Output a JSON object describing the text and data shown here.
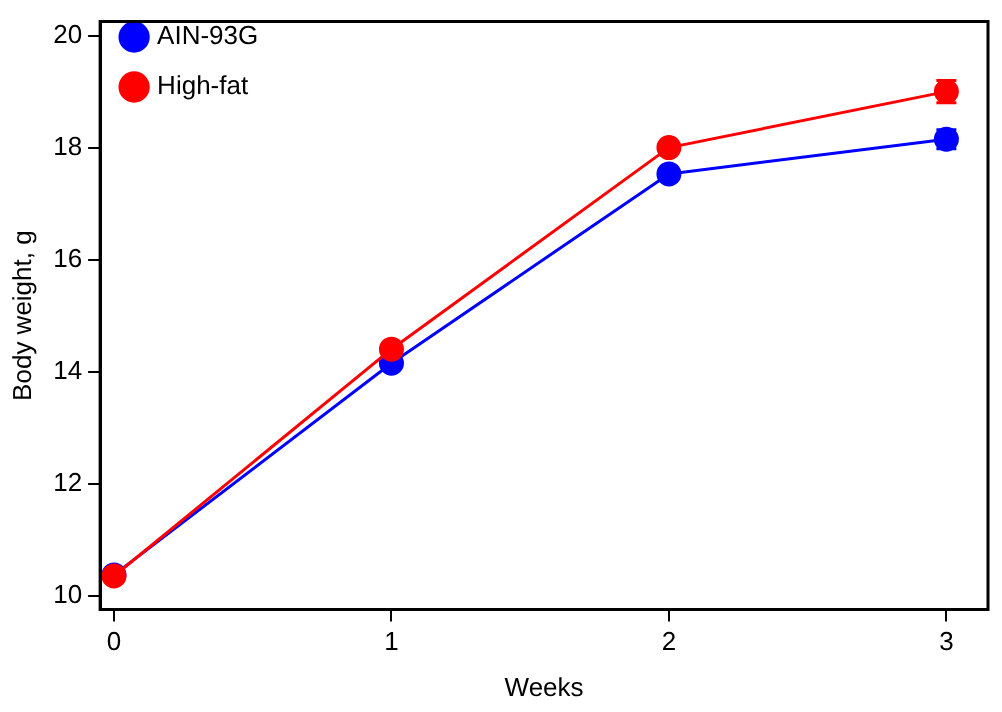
{
  "chart_data": {
    "type": "line",
    "xlabel": "Weeks",
    "ylabel": "Body weight, g",
    "x": [
      0,
      1,
      2,
      3
    ],
    "series": [
      {
        "name": "AIN-93G",
        "color": "#0000ff",
        "values": [
          10.37,
          14.15,
          17.53,
          18.15
        ],
        "errors": [
          null,
          null,
          null,
          0.17
        ]
      },
      {
        "name": "High-fat",
        "color": "#ff0000",
        "values": [
          10.35,
          14.4,
          18.0,
          19.0
        ],
        "errors": [
          null,
          null,
          null,
          0.2
        ]
      }
    ],
    "xlim": [
      -0.05,
      3.15
    ],
    "xticks": [
      0,
      1,
      2,
      3
    ],
    "ylim": [
      9.75,
      20.25
    ],
    "yticks": [
      10,
      12,
      14,
      16,
      18,
      20
    ],
    "grid": false,
    "legend": "top left",
    "marker": "circle",
    "line_style": "solid"
  }
}
